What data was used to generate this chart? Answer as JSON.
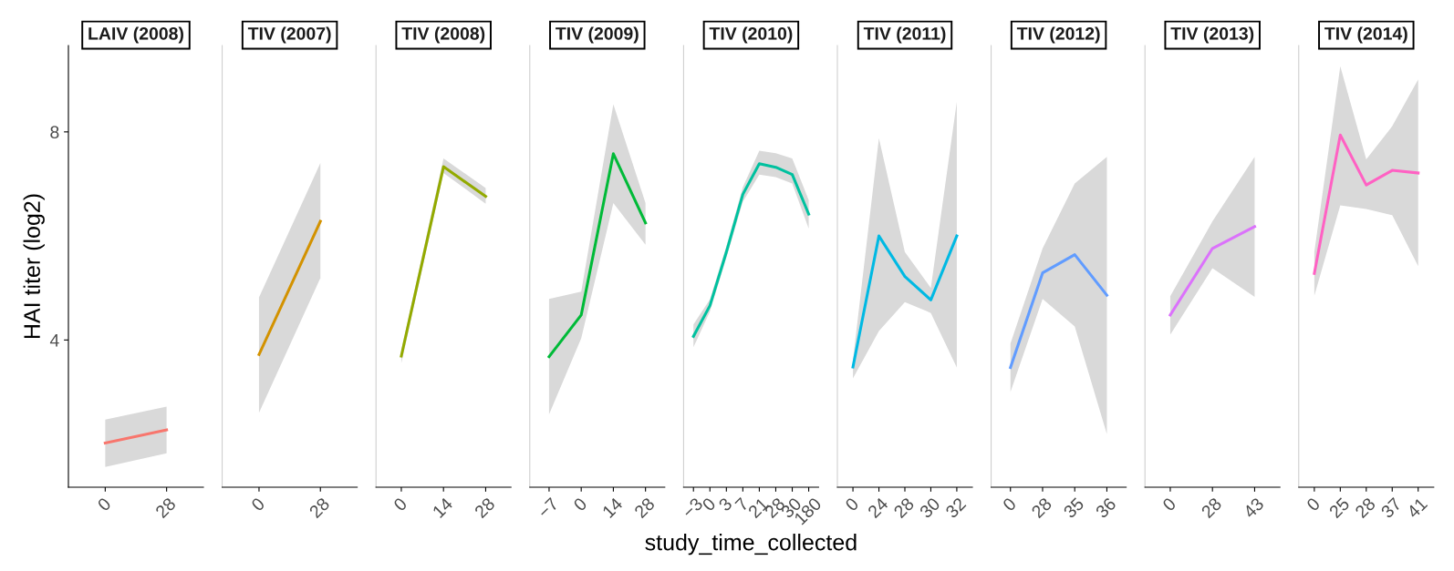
{
  "chart_data": [
    {
      "type": "line",
      "title": "LAIV (2008)",
      "ylabel": "HAI titer (log2)",
      "categories": [
        "0",
        "28"
      ],
      "ylim": [
        1.17,
        9.66
      ],
      "yticks": [
        4,
        8
      ],
      "grid": false,
      "legend": false,
      "series": [
        {
          "color": "#f8766d",
          "values": [
            2.02,
            2.27
          ],
          "lower": [
            1.56,
            1.82
          ],
          "upper": [
            2.47,
            2.72
          ]
        }
      ]
    },
    {
      "type": "line",
      "title": "TIV (2007)",
      "categories": [
        "0",
        "28"
      ],
      "ylim": [
        1.17,
        9.66
      ],
      "yticks": [
        4,
        8
      ],
      "tick_labels": "x",
      "grid": false,
      "legend": false,
      "series": [
        {
          "color": "#d39200",
          "values": [
            3.72,
            6.28
          ],
          "lower": [
            2.6,
            5.19
          ],
          "upper": [
            4.82,
            7.4
          ]
        }
      ]
    },
    {
      "type": "line",
      "title": "TIV (2008)",
      "categories": [
        "0",
        "14",
        "28"
      ],
      "ylim": [
        1.17,
        9.66
      ],
      "yticks": [
        4,
        8
      ],
      "tick_labels": "x",
      "grid": false,
      "legend": false,
      "series": [
        {
          "color": "#93aa00",
          "values": [
            3.69,
            7.33,
            6.76
          ],
          "lower": [
            3.55,
            7.21,
            6.62
          ],
          "upper": [
            3.8,
            7.49,
            6.92
          ]
        }
      ]
    },
    {
      "type": "line",
      "title": "TIV (2009)",
      "categories": [
        "−7",
        "0",
        "14",
        "28"
      ],
      "ylim": [
        1.17,
        9.66
      ],
      "yticks": [
        4,
        8
      ],
      "tick_labels": "x",
      "grid": false,
      "legend": false,
      "series": [
        {
          "color": "#00ba38",
          "values": [
            3.68,
            4.48,
            7.58,
            6.25
          ],
          "lower": [
            2.57,
            4.03,
            6.63,
            5.83
          ],
          "upper": [
            4.79,
            4.93,
            8.53,
            6.63
          ]
        }
      ]
    },
    {
      "type": "line",
      "title": "TIV (2010)",
      "xlabel": "study_time_collected",
      "categories": [
        "−3",
        "0",
        "3",
        "7",
        "21",
        "28",
        "30",
        "180"
      ],
      "ylim": [
        1.17,
        9.66
      ],
      "yticks": [
        4,
        8
      ],
      "tick_labels": "x",
      "grid": false,
      "legend": false,
      "series": [
        {
          "color": "#00c19f",
          "values": [
            4.07,
            4.66,
            5.69,
            6.8,
            7.39,
            7.32,
            7.18,
            6.42
          ],
          "lower": [
            3.86,
            4.55,
            5.58,
            6.66,
            7.18,
            7.13,
            7.01,
            6.14
          ],
          "upper": [
            4.3,
            4.78,
            5.8,
            6.94,
            7.64,
            7.59,
            7.49,
            6.69
          ]
        }
      ]
    },
    {
      "type": "line",
      "title": "TIV (2011)",
      "categories": [
        "0",
        "24",
        "28",
        "30",
        "32"
      ],
      "ylim": [
        1.17,
        9.66
      ],
      "yticks": [
        4,
        8
      ],
      "tick_labels": "x",
      "grid": false,
      "legend": false,
      "series": [
        {
          "color": "#00b9e3",
          "values": [
            3.48,
            6.0,
            5.22,
            4.77,
            6.0
          ],
          "lower": [
            3.26,
            4.17,
            4.73,
            4.52,
            3.47
          ],
          "upper": [
            3.61,
            7.88,
            5.69,
            5.0,
            8.58
          ]
        }
      ]
    },
    {
      "type": "line",
      "title": "TIV (2012)",
      "categories": [
        "0",
        "28",
        "35",
        "36"
      ],
      "ylim": [
        1.17,
        9.66
      ],
      "yticks": [
        4,
        8
      ],
      "tick_labels": "x",
      "grid": false,
      "legend": false,
      "series": [
        {
          "color": "#619cff",
          "values": [
            3.47,
            5.29,
            5.64,
            4.86
          ],
          "lower": [
            3.0,
            4.79,
            4.26,
            2.19
          ],
          "upper": [
            3.93,
            5.76,
            7.01,
            7.52
          ]
        }
      ]
    },
    {
      "type": "line",
      "title": "TIV (2013)",
      "categories": [
        "0",
        "28",
        "43"
      ],
      "ylim": [
        1.17,
        9.66
      ],
      "yticks": [
        4,
        8
      ],
      "tick_labels": "x",
      "grid": false,
      "legend": false,
      "series": [
        {
          "color": "#db72fb",
          "values": [
            4.48,
            5.76,
            6.18
          ],
          "lower": [
            4.1,
            5.38,
            4.83
          ],
          "upper": [
            4.84,
            6.28,
            7.52
          ]
        }
      ]
    },
    {
      "type": "line",
      "title": "TIV (2014)",
      "categories": [
        "0",
        "25",
        "28",
        "37",
        "41"
      ],
      "ylim": [
        1.17,
        9.66
      ],
      "yticks": [
        4,
        8
      ],
      "tick_labels": "x",
      "grid": false,
      "legend": false,
      "series": [
        {
          "color": "#ff61c3",
          "values": [
            5.28,
            7.94,
            6.98,
            7.26,
            7.21
          ],
          "lower": [
            4.85,
            6.59,
            6.52,
            6.4,
            5.42
          ],
          "upper": [
            5.69,
            9.26,
            7.47,
            8.11,
            9.01
          ]
        }
      ]
    }
  ]
}
